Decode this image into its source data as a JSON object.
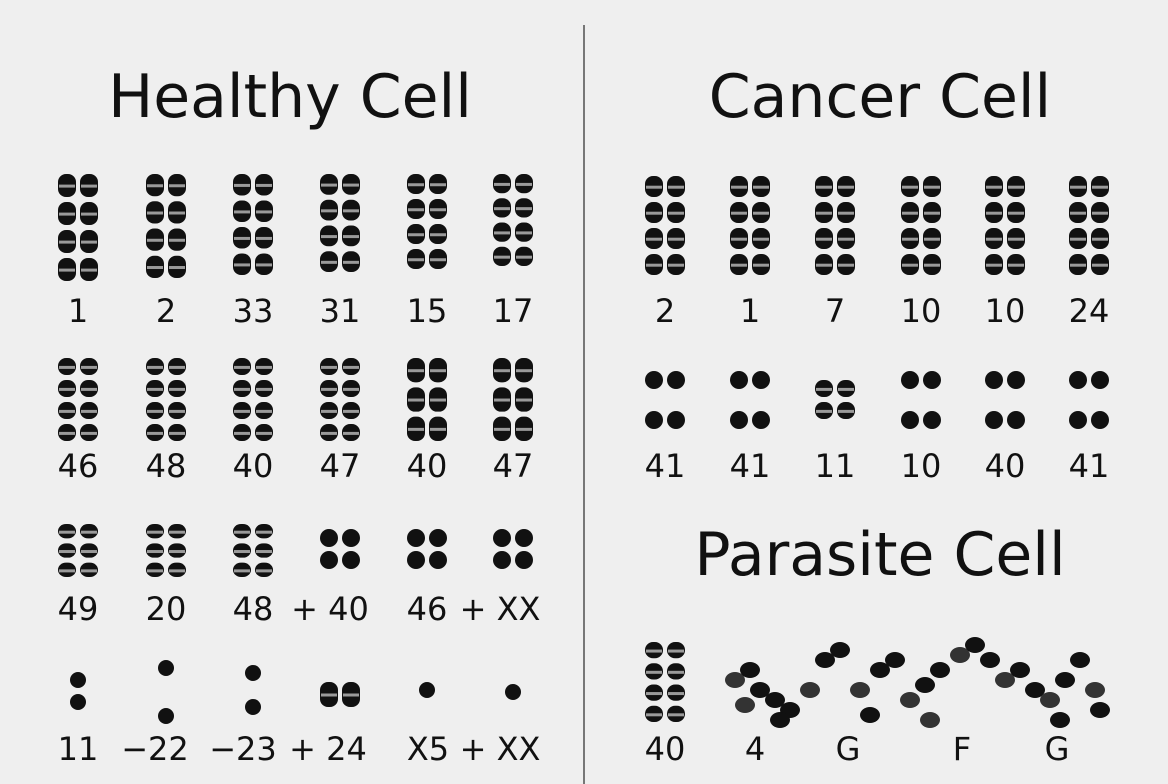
{
  "healthy": {
    "title": "Healthy Cell",
    "rows": [
      [
        "1",
        "2",
        "33",
        "31",
        "15",
        "17"
      ],
      [
        "46",
        "48",
        "40",
        "47",
        "40",
        "47"
      ],
      [
        "49",
        "20",
        "48",
        "+ 40",
        "46",
        "+ XX"
      ],
      [
        "11",
        "−22",
        "−23",
        "+ 24",
        "X5",
        "+ XX"
      ]
    ]
  },
  "cancer": {
    "title": "Cancer Cell",
    "rows": [
      [
        "2",
        "1",
        "7",
        "10",
        "10",
        "24"
      ],
      [
        "41",
        "41",
        "11",
        "10",
        "40",
        "41"
      ]
    ]
  },
  "parasite": {
    "title": "Parasite Cell",
    "labels": [
      "40",
      "4",
      "G",
      "F",
      "G"
    ]
  }
}
